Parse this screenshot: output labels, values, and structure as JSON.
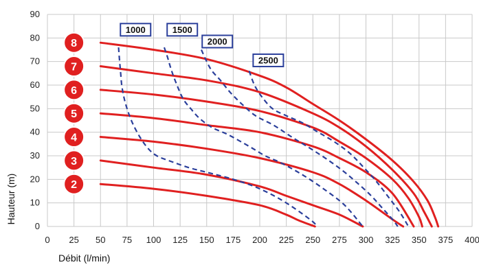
{
  "chart_data": {
    "type": "line",
    "xlabel": "Débit (l/min)",
    "ylabel": "Hauteur (m)",
    "xlim": [
      0,
      400
    ],
    "ylim": [
      0,
      90
    ],
    "xticks": [
      0,
      25,
      50,
      75,
      100,
      125,
      150,
      175,
      200,
      225,
      250,
      275,
      300,
      325,
      350,
      375,
      400
    ],
    "yticks": [
      0,
      10,
      20,
      30,
      40,
      50,
      60,
      70,
      80,
      90
    ],
    "grid": true,
    "colors": {
      "pressure": "#e02020",
      "speed": "#2b3f9b",
      "badge": "#e02020"
    },
    "pressure_series": [
      {
        "name": "2",
        "points": [
          [
            50,
            18
          ],
          [
            100,
            16
          ],
          [
            150,
            13
          ],
          [
            200,
            9
          ],
          [
            225,
            5
          ],
          [
            237,
            2.5
          ],
          [
            252,
            0
          ]
        ]
      },
      {
        "name": "3",
        "points": [
          [
            50,
            28
          ],
          [
            100,
            25
          ],
          [
            150,
            22
          ],
          [
            200,
            17
          ],
          [
            225,
            13
          ],
          [
            250,
            9
          ],
          [
            275,
            5
          ],
          [
            297,
            0
          ]
        ]
      },
      {
        "name": "4",
        "points": [
          [
            50,
            38
          ],
          [
            100,
            36
          ],
          [
            150,
            33
          ],
          [
            200,
            29
          ],
          [
            250,
            23
          ],
          [
            275,
            18
          ],
          [
            300,
            11
          ],
          [
            325,
            3
          ],
          [
            335,
            0
          ]
        ]
      },
      {
        "name": "5",
        "points": [
          [
            50,
            48
          ],
          [
            100,
            46
          ],
          [
            150,
            43
          ],
          [
            200,
            40
          ],
          [
            250,
            34
          ],
          [
            275,
            29
          ],
          [
            300,
            23
          ],
          [
            325,
            14
          ],
          [
            345,
            0
          ]
        ]
      },
      {
        "name": "6",
        "points": [
          [
            50,
            58
          ],
          [
            100,
            56
          ],
          [
            150,
            53
          ],
          [
            200,
            49
          ],
          [
            250,
            42
          ],
          [
            275,
            36
          ],
          [
            300,
            29
          ],
          [
            325,
            20
          ],
          [
            340,
            12
          ],
          [
            350,
            4
          ],
          [
            353,
            0
          ]
        ]
      },
      {
        "name": "7",
        "points": [
          [
            50,
            68
          ],
          [
            100,
            65
          ],
          [
            150,
            62
          ],
          [
            200,
            57
          ],
          [
            250,
            48
          ],
          [
            275,
            42
          ],
          [
            300,
            34
          ],
          [
            325,
            24
          ],
          [
            345,
            14
          ],
          [
            355,
            6
          ],
          [
            362,
            0
          ]
        ]
      },
      {
        "name": "8",
        "points": [
          [
            50,
            78
          ],
          [
            100,
            75
          ],
          [
            150,
            71
          ],
          [
            200,
            64
          ],
          [
            225,
            59
          ],
          [
            250,
            52
          ],
          [
            275,
            45
          ],
          [
            300,
            37
          ],
          [
            325,
            28
          ],
          [
            345,
            19
          ],
          [
            358,
            11
          ],
          [
            365,
            4
          ],
          [
            368,
            0
          ]
        ]
      }
    ],
    "speed_series": [
      {
        "name": "1000",
        "points": [
          [
            67,
            76
          ],
          [
            68,
            70
          ],
          [
            69,
            65
          ],
          [
            70,
            60
          ],
          [
            72,
            55
          ],
          [
            75,
            50
          ],
          [
            80,
            44
          ],
          [
            87,
            38
          ],
          [
            95,
            33
          ],
          [
            103,
            30
          ],
          [
            114,
            28
          ],
          [
            133,
            25
          ],
          [
            150,
            23
          ],
          [
            175,
            20
          ],
          [
            200,
            16
          ],
          [
            225,
            10
          ],
          [
            250,
            2
          ],
          [
            252,
            0
          ]
        ]
      },
      {
        "name": "1500",
        "points": [
          [
            110,
            76
          ],
          [
            113,
            72
          ],
          [
            117,
            66
          ],
          [
            122,
            60
          ],
          [
            128,
            54
          ],
          [
            135,
            50
          ],
          [
            143,
            46
          ],
          [
            155,
            42
          ],
          [
            170,
            39
          ],
          [
            190,
            34
          ],
          [
            205,
            30
          ],
          [
            220,
            27
          ],
          [
            240,
            22
          ],
          [
            260,
            16
          ],
          [
            280,
            9
          ],
          [
            297,
            0
          ]
        ]
      },
      {
        "name": "2000",
        "points": [
          [
            145,
            75
          ],
          [
            150,
            70
          ],
          [
            155,
            66
          ],
          [
            163,
            62
          ],
          [
            172,
            57
          ],
          [
            183,
            52
          ],
          [
            196,
            47
          ],
          [
            213,
            43
          ],
          [
            230,
            38
          ],
          [
            248,
            33
          ],
          [
            265,
            28
          ],
          [
            280,
            23
          ],
          [
            293,
            18
          ],
          [
            305,
            13
          ],
          [
            315,
            8
          ],
          [
            325,
            3
          ],
          [
            330,
            0
          ]
        ]
      },
      {
        "name": "2500",
        "points": [
          [
            190,
            66
          ],
          [
            195,
            60
          ],
          [
            202,
            55
          ],
          [
            212,
            50
          ],
          [
            225,
            47
          ],
          [
            240,
            44
          ],
          [
            255,
            40
          ],
          [
            270,
            36
          ],
          [
            285,
            31
          ],
          [
            298,
            25
          ],
          [
            310,
            19
          ],
          [
            322,
            12
          ],
          [
            332,
            6
          ],
          [
            340,
            0
          ]
        ]
      }
    ],
    "badges": [
      {
        "label": "8",
        "y": 78
      },
      {
        "label": "7",
        "y": 68
      },
      {
        "label": "6",
        "y": 58
      },
      {
        "label": "5",
        "y": 48
      },
      {
        "label": "4",
        "y": 38
      },
      {
        "label": "3",
        "y": 28
      },
      {
        "label": "2",
        "y": 18
      }
    ],
    "speed_labels": [
      {
        "label": "1000",
        "x": 83,
        "y": 83.5
      },
      {
        "label": "1500",
        "x": 127,
        "y": 83.5
      },
      {
        "label": "2000",
        "x": 160,
        "y": 78.5
      },
      {
        "label": "2500",
        "x": 208,
        "y": 70.5
      }
    ]
  }
}
